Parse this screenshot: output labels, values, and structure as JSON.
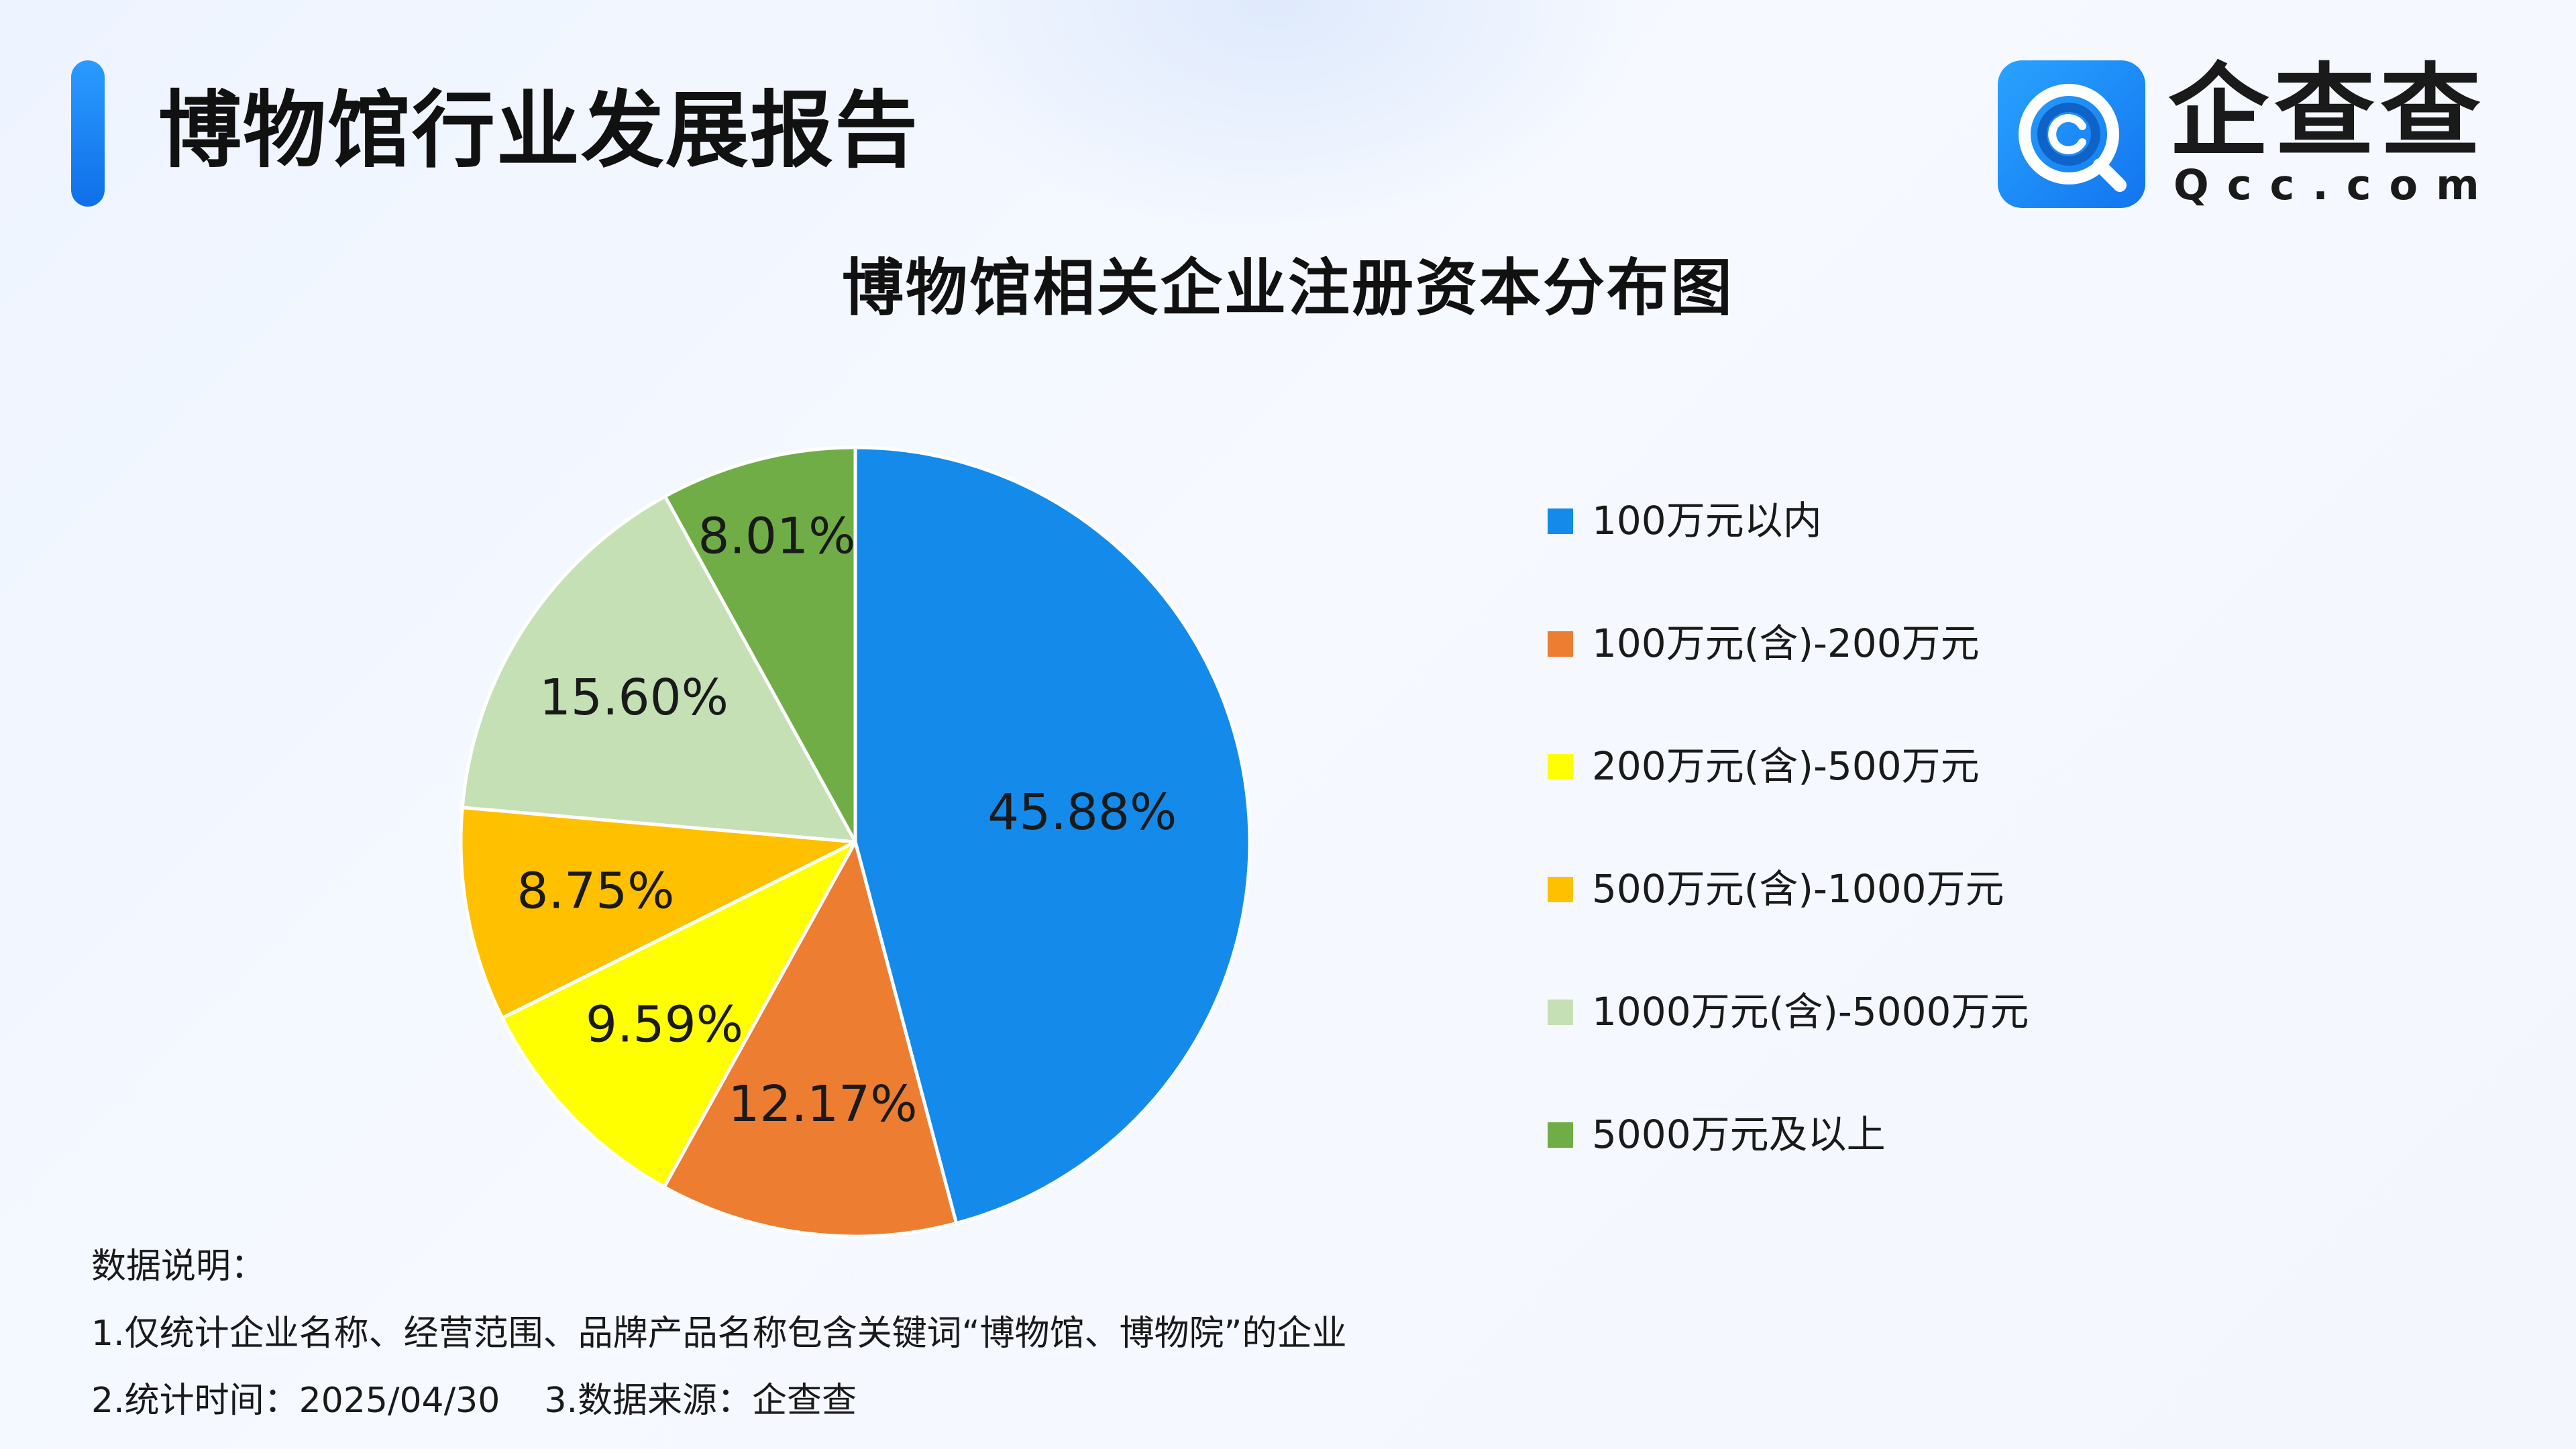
{
  "header": {
    "title": "博物馆行业发展报告",
    "logo_name": "企查查",
    "logo_sub": "Qcc.com",
    "logo_icon": "qcc-logo-icon"
  },
  "colors": {
    "accent": "#1a8bf2",
    "text": "#1a1a1a"
  },
  "chart_data": {
    "type": "pie",
    "title": "博物馆相关企业注册资本分布图",
    "slices": [
      {
        "label": "100万元以内",
        "value": 45.88,
        "display": "45.88%",
        "color": "#148bea"
      },
      {
        "label": "100万元(含)-200万元",
        "value": 12.17,
        "display": "12.17%",
        "color": "#ed7d31"
      },
      {
        "label": "200万元(含)-500万元",
        "value": 9.59,
        "display": "9.59%",
        "color": "#ffff00"
      },
      {
        "label": "500万元(含)-1000万元",
        "value": 8.75,
        "display": "8.75%",
        "color": "#ffc000"
      },
      {
        "label": "1000万元(含)-5000万元",
        "value": 15.6,
        "display": "15.60%",
        "color": "#c5e0b4"
      },
      {
        "label": "5000万元及以上",
        "value": 8.01,
        "display": "8.01%",
        "color": "#70ad47"
      }
    ],
    "legend_position": "right",
    "start_angle": "12 o'clock, clockwise"
  },
  "notes": {
    "heading": "数据说明：",
    "line1": "1.仅统计企业名称、经营范围、品牌产品名称包含关键词“博物馆、博物院”的企业",
    "line2": "2.统计时间：2025/04/30    3.数据来源：企查查"
  }
}
